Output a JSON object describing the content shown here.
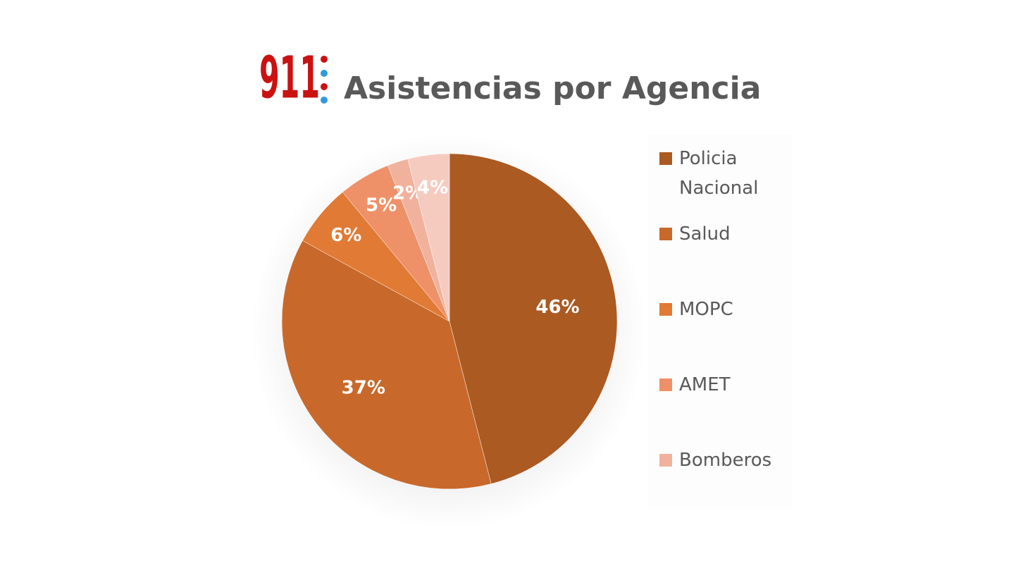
{
  "logo": "911",
  "chart_data": {
    "type": "pie",
    "title": "Asistencias por Agencia",
    "categories": [
      "Policia Nacional",
      "Salud",
      "MOPC",
      "AMET",
      "Bomberos",
      null
    ],
    "values": [
      46,
      37,
      6,
      5,
      2,
      4
    ],
    "value_labels": [
      "46%",
      "37%",
      "6%",
      "5%",
      "2%",
      "4%"
    ],
    "colors": [
      "#ab5a22",
      "#c8692b",
      "#e07a35",
      "#ee9168",
      "#f0b29c",
      "#f5cbc0"
    ]
  }
}
